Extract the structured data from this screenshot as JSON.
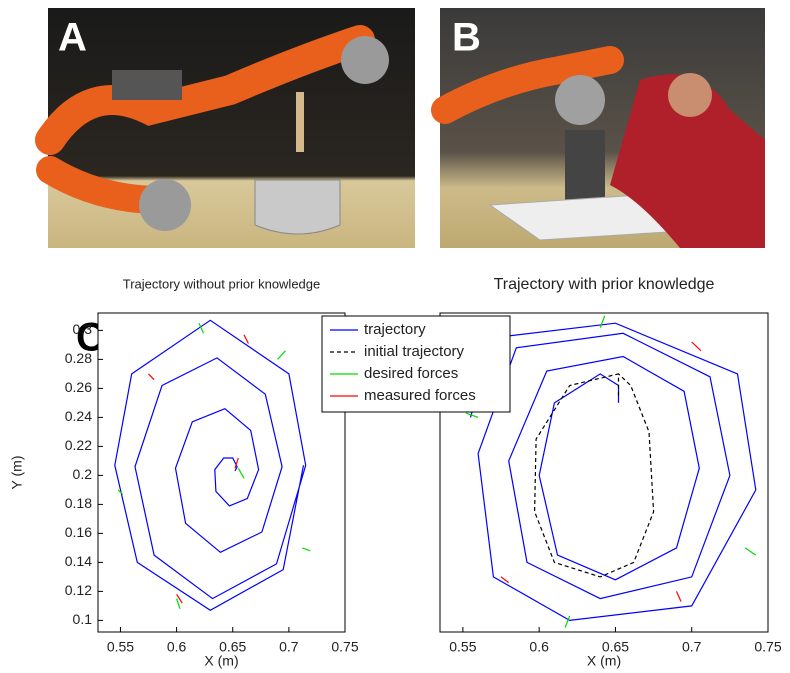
{
  "panel_labels": [
    "A",
    "B",
    "C"
  ],
  "chart_data": [
    {
      "type": "line",
      "title": "Trajectory without prior knowledge",
      "xlabel": "X (m)",
      "ylabel": "Y (m)",
      "xlim": [
        0.53,
        0.75
      ],
      "ylim": [
        0.092,
        0.312
      ],
      "xticks": [
        0.55,
        0.6,
        0.65,
        0.7,
        0.75
      ],
      "yticks": [
        0.1,
        0.12,
        0.14,
        0.16,
        0.18,
        0.2,
        0.22,
        0.24,
        0.26,
        0.28,
        0.3
      ],
      "series": [
        {
          "color": "#0000ff",
          "dash": false,
          "x": [
            0.652,
            0.654,
            0.65,
            0.642,
            0.634,
            0.635,
            0.647,
            0.663,
            0.673,
            0.666,
            0.643,
            0.614,
            0.599,
            0.608,
            0.639,
            0.676,
            0.694,
            0.679,
            0.636,
            0.587,
            0.563,
            0.58,
            0.632,
            0.689,
            0.715,
            0.7,
            0.63,
            0.56,
            0.545,
            0.565,
            0.63,
            0.695,
            0.713
          ],
          "values": [
            0.203,
            0.206,
            0.212,
            0.212,
            0.204,
            0.189,
            0.179,
            0.184,
            0.204,
            0.231,
            0.246,
            0.237,
            0.205,
            0.167,
            0.147,
            0.161,
            0.206,
            0.256,
            0.281,
            0.262,
            0.206,
            0.145,
            0.115,
            0.139,
            0.207,
            0.27,
            0.307,
            0.27,
            0.207,
            0.14,
            0.107,
            0.135,
            0.207
          ]
        },
        {
          "color": "#00dd00",
          "dash": false,
          "x": [
            0.62,
            0.624,
            null,
            0.548,
            0.552,
            null,
            0.69,
            0.697,
            null,
            0.6,
            0.603,
            null,
            0.655,
            0.66,
            null,
            0.712,
            0.719
          ],
          "values": [
            0.305,
            0.298,
            null,
            0.19,
            0.187,
            null,
            0.28,
            0.286,
            null,
            0.115,
            0.108,
            null,
            0.205,
            0.198,
            null,
            0.15,
            0.148
          ]
        },
        {
          "color": "#ff0000",
          "dash": false,
          "x": [
            0.66,
            0.664,
            null,
            0.575,
            0.58,
            null,
            0.6,
            0.605,
            null,
            0.652,
            0.655
          ],
          "values": [
            0.297,
            0.291,
            null,
            0.27,
            0.266,
            null,
            0.118,
            0.112,
            null,
            0.205,
            0.212
          ]
        }
      ]
    },
    {
      "type": "line",
      "title": "Trajectory with prior knowledge",
      "xlabel": "X (m)",
      "xlim": [
        0.535,
        0.75
      ],
      "ylim": [
        0.092,
        0.312
      ],
      "xticks": [
        0.55,
        0.6,
        0.65,
        0.7,
        0.75
      ],
      "series": [
        {
          "name": "trajectory",
          "color": "#0000ff",
          "dash": false,
          "x": [
            0.652,
            0.652,
            0.64,
            0.61,
            0.6,
            0.612,
            0.65,
            0.69,
            0.705,
            0.695,
            0.655,
            0.605,
            0.58,
            0.592,
            0.64,
            0.7,
            0.725,
            0.712,
            0.655,
            0.585,
            0.56,
            0.57,
            0.62,
            0.7,
            0.742,
            0.73,
            0.65,
            0.57,
            0.555
          ],
          "values": [
            0.25,
            0.262,
            0.27,
            0.25,
            0.2,
            0.145,
            0.128,
            0.15,
            0.205,
            0.258,
            0.282,
            0.272,
            0.21,
            0.14,
            0.115,
            0.13,
            0.2,
            0.268,
            0.298,
            0.288,
            0.215,
            0.13,
            0.1,
            0.11,
            0.19,
            0.27,
            0.305,
            0.295,
            0.24
          ]
        },
        {
          "name": "initial trajectory",
          "color": "#000000",
          "dash": true,
          "x": [
            0.652,
            0.652,
            0.62,
            0.598,
            0.597,
            0.61,
            0.64,
            0.662,
            0.675,
            0.672,
            0.66,
            0.652
          ],
          "values": [
            0.255,
            0.27,
            0.262,
            0.225,
            0.175,
            0.14,
            0.13,
            0.14,
            0.175,
            0.23,
            0.262,
            0.27
          ]
        },
        {
          "name": "desired forces",
          "color": "#00dd00",
          "dash": false,
          "x": [
            0.64,
            0.643,
            null,
            0.56,
            0.552,
            null,
            0.735,
            0.742,
            null,
            0.62,
            0.617
          ],
          "values": [
            0.302,
            0.31,
            null,
            0.24,
            0.243,
            null,
            0.15,
            0.145,
            null,
            0.103,
            0.095
          ]
        },
        {
          "name": "measured forces",
          "color": "#ff0000",
          "dash": false,
          "x": [
            0.7,
            0.706,
            null,
            0.575,
            0.58,
            null,
            0.69,
            0.693
          ],
          "values": [
            0.292,
            0.286,
            null,
            0.13,
            0.126,
            null,
            0.12,
            0.113
          ]
        }
      ]
    }
  ]
}
